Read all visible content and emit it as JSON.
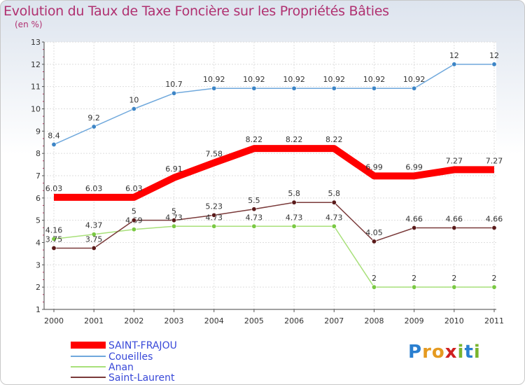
{
  "title": "Evolution du Taux de Taxe Foncière sur les Propriétés Bâties",
  "unit_label": "(en %)",
  "logo": {
    "letters": [
      "P",
      "r",
      "o",
      "x",
      "i",
      "t",
      "i"
    ],
    "colors": [
      "#2a7fd0",
      "#e59a20",
      "#e59a20",
      "#d02020",
      "#7ab52e",
      "#2a7fd0",
      "#7ab52e"
    ]
  },
  "chart_data": {
    "type": "line",
    "x": [
      "2000",
      "2001",
      "2002",
      "2003",
      "2004",
      "2005",
      "2006",
      "2007",
      "2008",
      "2009",
      "2010",
      "2011"
    ],
    "ylim": [
      1,
      13
    ],
    "yticks": [
      1,
      2,
      3,
      4,
      5,
      6,
      7,
      8,
      9,
      10,
      11,
      12,
      13
    ],
    "grid": true,
    "legend_position": "bottom-left",
    "series": [
      {
        "name": "SAINT-FRAJOU",
        "color": "#ff0000",
        "values": [
          6.03,
          6.03,
          6.03,
          6.91,
          7.58,
          8.22,
          8.22,
          8.22,
          6.99,
          6.99,
          7.27,
          7.27
        ],
        "labels": [
          "6.03",
          "6.03",
          "6.03",
          "6.91",
          "7.58",
          "8.22",
          "8.22",
          "8.22",
          "6.99",
          "6.99",
          "7.27",
          "7.27"
        ]
      },
      {
        "name": "Coueilles",
        "color": "#6fa8dc",
        "marker": "#3d85c6",
        "values": [
          8.4,
          9.2,
          10,
          10.7,
          10.92,
          10.92,
          10.92,
          10.92,
          10.92,
          10.92,
          12,
          12
        ],
        "labels": [
          "8.4",
          "9.2",
          "10",
          "10.7",
          "10.92",
          "10.92",
          "10.92",
          "10.92",
          "10.92",
          "10.92",
          "12",
          "12"
        ]
      },
      {
        "name": "Anan",
        "color": "#a8e07a",
        "marker": "#7ac943",
        "values": [
          4.16,
          4.37,
          4.59,
          4.73,
          4.73,
          4.73,
          4.73,
          4.73,
          2,
          2,
          2,
          2
        ],
        "labels": [
          "4.16",
          "4.37",
          "4.59",
          "4.73",
          "4.73",
          "4.73",
          "4.73",
          "4.73",
          "2",
          "2",
          "2",
          "2"
        ]
      },
      {
        "name": "Saint-Laurent",
        "color": "#7a3a3a",
        "marker": "#5a1a1a",
        "values": [
          3.75,
          3.75,
          5,
          5,
          5.23,
          5.5,
          5.8,
          5.8,
          4.05,
          4.66,
          4.66,
          4.66
        ],
        "labels": [
          "3.75",
          "3.75",
          "5",
          "5",
          "5.23",
          "5.5",
          "5.8",
          "5.8",
          "4.05",
          "4.66",
          "4.66",
          "4.66"
        ]
      }
    ]
  }
}
